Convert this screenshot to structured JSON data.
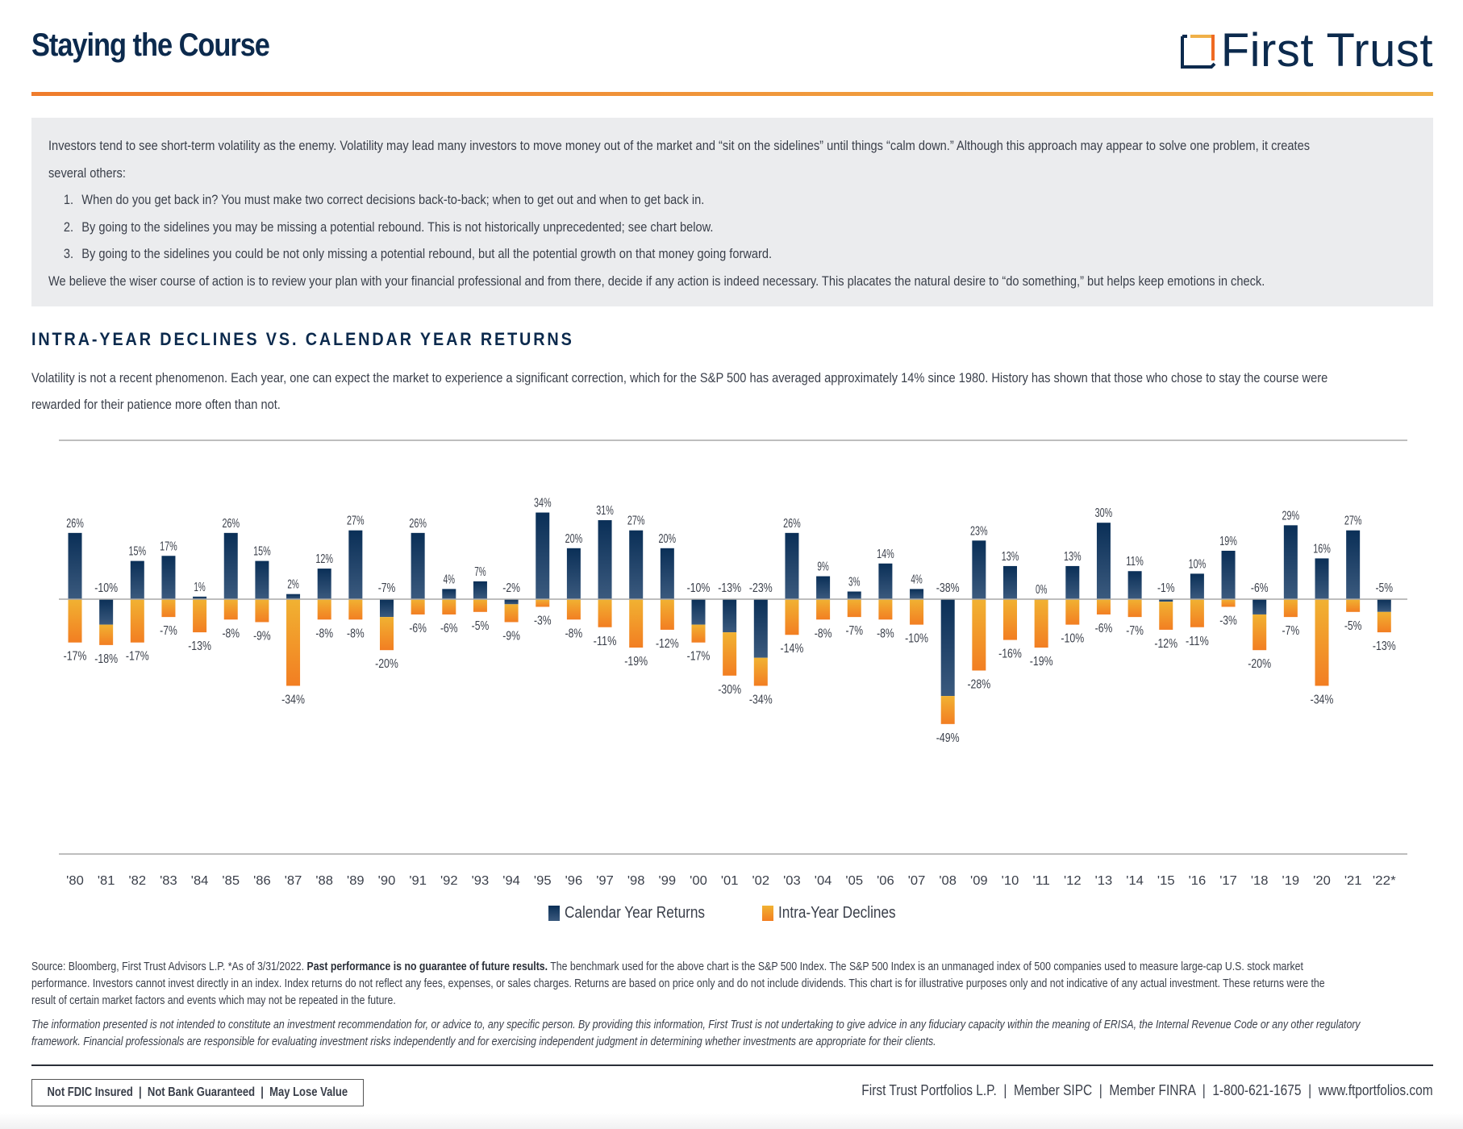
{
  "header": {
    "title": "Staying the Course",
    "logo_text": "First Trust"
  },
  "intro": {
    "paragraph": "Investors tend to see short-term volatility as the enemy. Volatility may lead many investors to move money out of the market and “sit on the sidelines” until things “calm down.” Although this approach may appear to solve one problem, it creates",
    "paragraph_cont": "several others:",
    "items": [
      {
        "num": "1.",
        "text": "When do you get back in? You must make two correct decisions back-to-back; when to get out and when to get back in."
      },
      {
        "num": "2.",
        "text": "By going to the sidelines you may be missing a potential rebound. This is not historically unprecedented; see chart below."
      },
      {
        "num": "3.",
        "text": "By going to the sidelines you could be not only missing a potential rebound, but all the potential growth on that money going forward."
      }
    ],
    "closing": "We believe the wiser course of action is to review your plan with your financial professional and from there, decide if any action is indeed necessary. This placates the natural desire to “do something,” but helps keep emotions in check."
  },
  "section": {
    "heading": "INTRA-YEAR DECLINES VS. CALENDAR YEAR RETURNS",
    "subtitle_line1": "Volatility is not a recent phenomenon. Each year, one can expect the market to experience a significant correction, which for the S&P 500 has averaged approximately 14% since 1980. History has shown that those who chose to stay the course were",
    "subtitle_line2": "rewarded for their patience more often than not."
  },
  "chart_data": {
    "type": "bar",
    "title": "Intra-Year Declines vs. Calendar Year Returns",
    "xlabel": "",
    "ylabel": "",
    "ylim": [
      -55,
      40
    ],
    "grid": false,
    "legend_position": "bottom-center",
    "categories": [
      "'80",
      "'81",
      "'82",
      "'83",
      "'84",
      "'85",
      "'86",
      "'87",
      "'88",
      "'89",
      "'90",
      "'91",
      "'92",
      "'93",
      "'94",
      "'95",
      "'96",
      "'97",
      "'98",
      "'99",
      "'00",
      "'01",
      "'02",
      "'03",
      "'04",
      "'05",
      "'06",
      "'07",
      "'08",
      "'09",
      "'10",
      "'11",
      "'12",
      "'13",
      "'14",
      "'15",
      "'16",
      "'17",
      "'18",
      "'19",
      "'20",
      "'21",
      "'22*"
    ],
    "series": [
      {
        "name": "Calendar Year Returns",
        "color_top": "#0a2f57",
        "color_bottom": "#3b5a7e",
        "values": [
          26,
          -10,
          15,
          17,
          1,
          26,
          15,
          2,
          12,
          27,
          -7,
          26,
          4,
          7,
          -2,
          34,
          20,
          31,
          27,
          20,
          -10,
          -13,
          -23,
          26,
          9,
          3,
          14,
          4,
          -38,
          23,
          13,
          0,
          13,
          30,
          11,
          -1,
          10,
          19,
          -6,
          29,
          16,
          27,
          -5
        ]
      },
      {
        "name": "Intra-Year Declines",
        "color_top": "#f1b232",
        "color_bottom": "#f27e22",
        "values": [
          -17,
          -18,
          -17,
          -7,
          -13,
          -8,
          -9,
          -34,
          -8,
          -8,
          -20,
          -6,
          -6,
          -5,
          -9,
          -3,
          -8,
          -11,
          -19,
          -12,
          -17,
          -30,
          -34,
          -14,
          -8,
          -7,
          -8,
          -10,
          -49,
          -28,
          -16,
          -19,
          -10,
          -6,
          -7,
          -12,
          -11,
          -3,
          -20,
          -7,
          -34,
          -5,
          -13
        ]
      }
    ]
  },
  "footnotes": {
    "source_prefix": "Source: Bloomberg, First Trust Advisors L.P. *As of 3/31/2022. ",
    "source_bold": "Past performance is no guarantee of future results.",
    "source_rest": " The benchmark used for the above chart is the S&P 500 Index. The S&P 500 Index is an unmanaged index of 500 companies used to measure large-cap U.S. stock market",
    "source_line2": "performance. Investors cannot invest directly in an index. Index returns do not reflect any fees, expenses, or sales charges. Returns are based on price only and do not include dividends. This chart is for illustrative purposes only and not indicative of any actual investment. These returns were the",
    "source_line3": "result of certain market factors and events which may not be repeated in the future.",
    "disclaimer_line1": "The information presented is not intended to constitute an investment recommendation for, or advice to, any specific person. By providing this information, First Trust is not undertaking to give advice in any fiduciary capacity within the meaning of ERISA, the Internal Revenue Code or any other regulatory",
    "disclaimer_line2": "framework. Financial professionals are responsible for evaluating investment risks independently and for exercising independent judgment in determining whether investments are appropriate for their clients."
  },
  "footer": {
    "badge": "Not FDIC Insured  |  Not Bank Guaranteed  |  May Lose Value",
    "contact": "First Trust Portfolios L.P.  |  Member SIPC  |  Member FINRA  |  1-800-621-1675  |  www.ftportfolios.com"
  }
}
